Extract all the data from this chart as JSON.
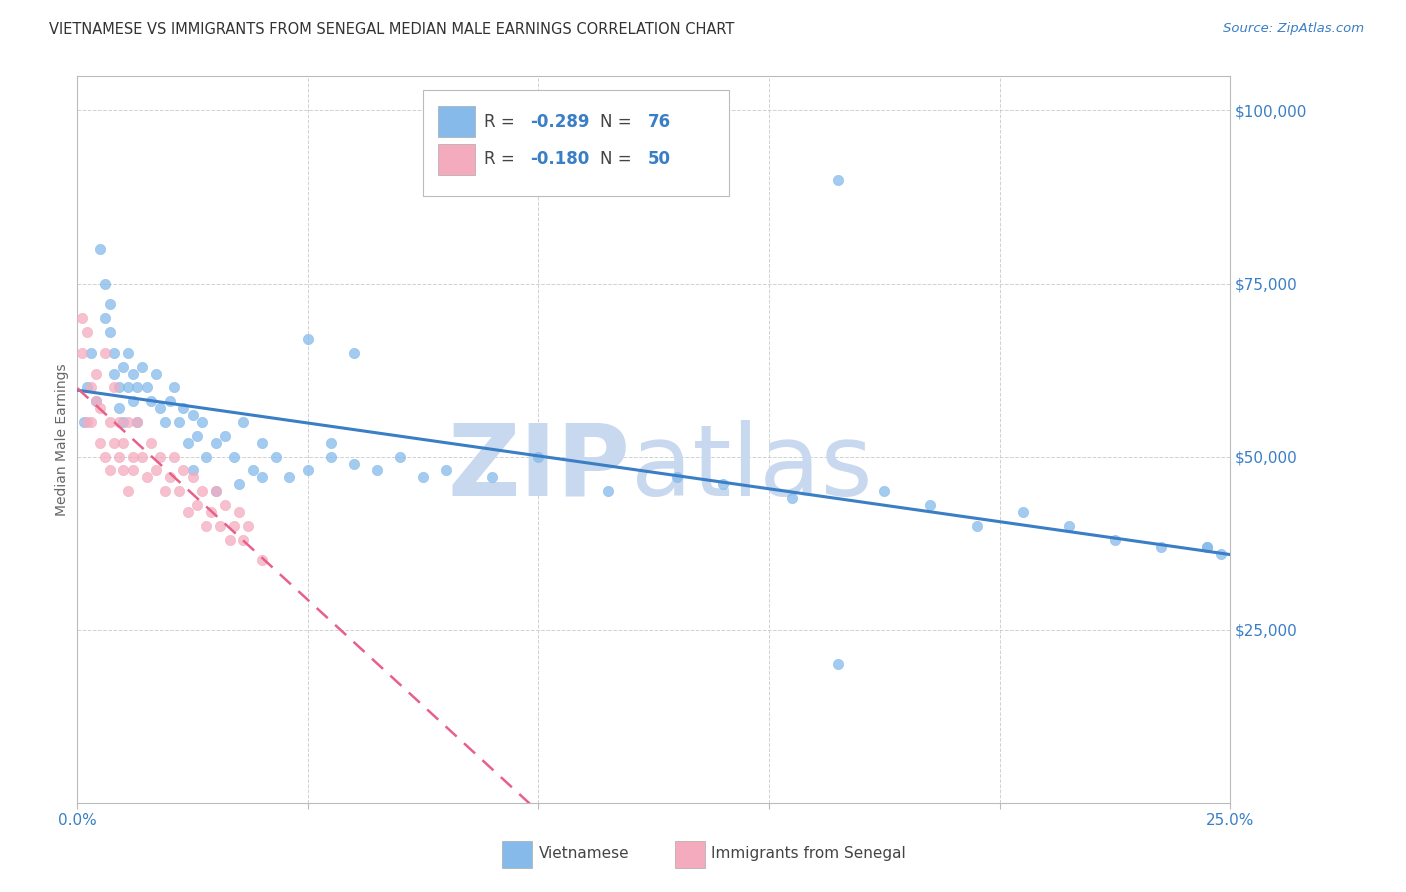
{
  "title": "VIETNAMESE VS IMMIGRANTS FROM SENEGAL MEDIAN MALE EARNINGS CORRELATION CHART",
  "source": "Source: ZipAtlas.com",
  "ylabel": "Median Male Earnings",
  "watermark_zip": "ZIP",
  "watermark_atlas": "atlas",
  "yticks": [
    0,
    25000,
    50000,
    75000,
    100000
  ],
  "ytick_labels": [
    "",
    "$25,000",
    "$50,000",
    "$75,000",
    "$100,000"
  ],
  "xticks": [
    0.0,
    0.05,
    0.1,
    0.15,
    0.2,
    0.25
  ],
  "xtick_labels": [
    "0.0%",
    "",
    "",
    "",
    "",
    "25.0%"
  ],
  "xlim": [
    0.0,
    0.25
  ],
  "ylim": [
    0,
    105000
  ],
  "legend_r_vietnamese": "-0.289",
  "legend_n_vietnamese": "76",
  "legend_r_senegal": "-0.180",
  "legend_n_senegal": "50",
  "blue_color": "#85BAEA",
  "pink_color": "#F4ABBE",
  "blue_line_color": "#3A7EC5",
  "pink_line_color": "#E8608A",
  "pink_line_dash": [
    6,
    4
  ],
  "grid_color": "#CCCCCC",
  "axis_color": "#BBBBBB",
  "title_color": "#333333",
  "source_color": "#3A7EC5",
  "tick_label_color": "#3A7EC5",
  "watermark_color": "#C8D8EE",
  "legend_value_color": "#3A7EC5",
  "legend_label_color": "#444444",
  "bottom_legend_color": "#444444",
  "viet_x": [
    0.0015,
    0.002,
    0.003,
    0.004,
    0.005,
    0.006,
    0.006,
    0.007,
    0.007,
    0.008,
    0.008,
    0.009,
    0.009,
    0.01,
    0.01,
    0.011,
    0.011,
    0.012,
    0.012,
    0.013,
    0.013,
    0.014,
    0.015,
    0.016,
    0.017,
    0.018,
    0.019,
    0.02,
    0.021,
    0.022,
    0.023,
    0.024,
    0.025,
    0.026,
    0.027,
    0.028,
    0.03,
    0.032,
    0.034,
    0.036,
    0.038,
    0.04,
    0.043,
    0.046,
    0.05,
    0.055,
    0.06,
    0.065,
    0.07,
    0.075,
    0.08,
    0.09,
    0.1,
    0.115,
    0.13,
    0.14,
    0.155,
    0.165,
    0.175,
    0.185,
    0.195,
    0.205,
    0.215,
    0.225,
    0.235,
    0.245,
    0.248,
    0.025,
    0.03,
    0.035,
    0.04,
    0.05,
    0.055,
    0.06,
    0.165,
    0.245
  ],
  "viet_y": [
    55000,
    60000,
    65000,
    58000,
    80000,
    70000,
    75000,
    68000,
    72000,
    62000,
    65000,
    57000,
    60000,
    55000,
    63000,
    60000,
    65000,
    58000,
    62000,
    60000,
    55000,
    63000,
    60000,
    58000,
    62000,
    57000,
    55000,
    58000,
    60000,
    55000,
    57000,
    52000,
    56000,
    53000,
    55000,
    50000,
    52000,
    53000,
    50000,
    55000,
    48000,
    52000,
    50000,
    47000,
    67000,
    50000,
    65000,
    48000,
    50000,
    47000,
    48000,
    47000,
    50000,
    45000,
    47000,
    46000,
    44000,
    90000,
    45000,
    43000,
    40000,
    42000,
    40000,
    38000,
    37000,
    37000,
    36000,
    48000,
    45000,
    46000,
    47000,
    48000,
    52000,
    49000,
    20000,
    37000
  ],
  "sene_x": [
    0.001,
    0.001,
    0.002,
    0.002,
    0.003,
    0.003,
    0.004,
    0.004,
    0.005,
    0.005,
    0.006,
    0.006,
    0.007,
    0.007,
    0.008,
    0.008,
    0.009,
    0.009,
    0.01,
    0.01,
    0.011,
    0.011,
    0.012,
    0.012,
    0.013,
    0.014,
    0.015,
    0.016,
    0.017,
    0.018,
    0.019,
    0.02,
    0.021,
    0.022,
    0.023,
    0.024,
    0.025,
    0.026,
    0.027,
    0.028,
    0.029,
    0.03,
    0.031,
    0.032,
    0.033,
    0.034,
    0.035,
    0.036,
    0.037,
    0.04
  ],
  "sene_y": [
    70000,
    65000,
    55000,
    68000,
    60000,
    55000,
    58000,
    62000,
    52000,
    57000,
    65000,
    50000,
    55000,
    48000,
    60000,
    52000,
    50000,
    55000,
    48000,
    52000,
    55000,
    45000,
    50000,
    48000,
    55000,
    50000,
    47000,
    52000,
    48000,
    50000,
    45000,
    47000,
    50000,
    45000,
    48000,
    42000,
    47000,
    43000,
    45000,
    40000,
    42000,
    45000,
    40000,
    43000,
    38000,
    40000,
    42000,
    38000,
    40000,
    35000
  ]
}
